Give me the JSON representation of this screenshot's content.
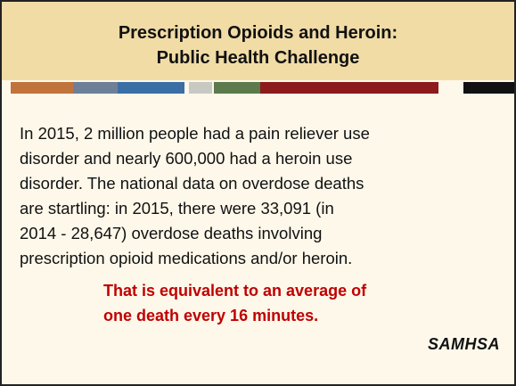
{
  "header": {
    "title_lines": [
      "Prescription Opioids and Heroin:",
      "Public Health Challenge"
    ]
  },
  "body": {
    "lines": [
      "In 2015, 2 million people had a pain reliever use",
      "disorder and nearly 600,000 had a heroin use",
      "disorder.  The national data on overdose deaths",
      "are startling: in 2015, there were 33,091 (in",
      "2014 - 28,647) overdose deaths involving",
      "prescription opioid medications and/or heroin."
    ],
    "callout_lines": [
      "That is equivalent to an average of",
      "one death every 16 minutes."
    ]
  },
  "logo": {
    "text": "SAMHSA"
  }
}
